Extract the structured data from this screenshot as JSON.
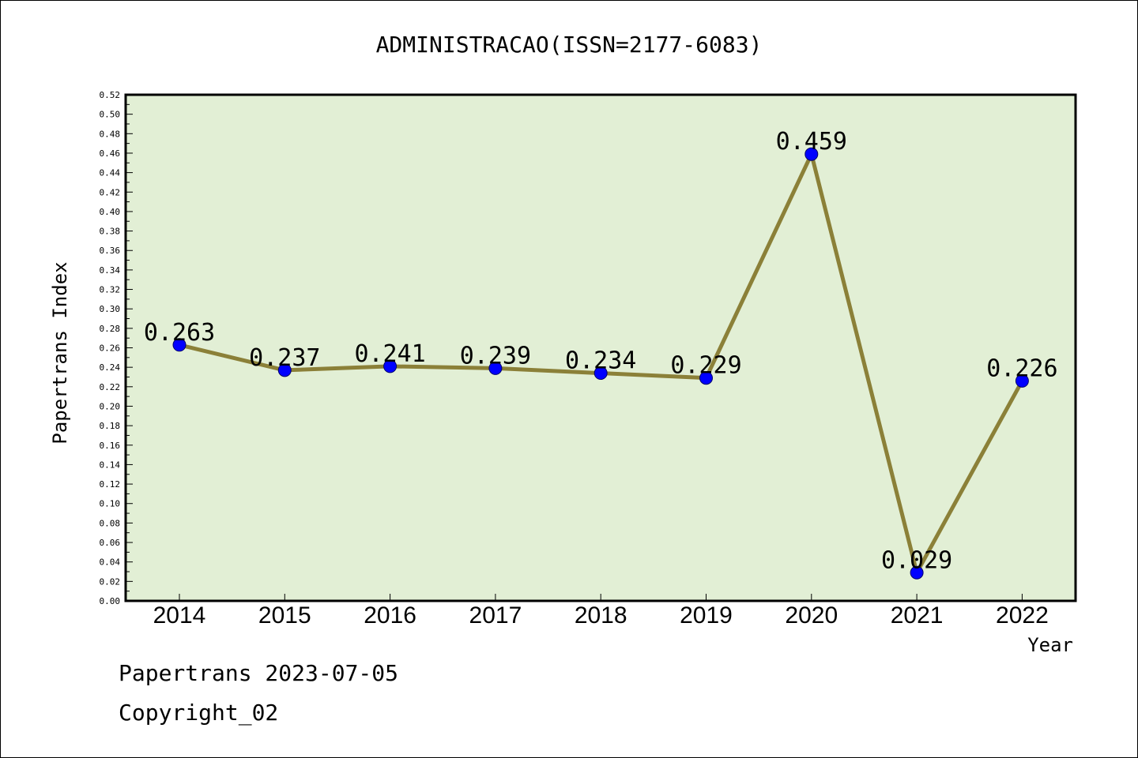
{
  "chart_data": {
    "type": "line",
    "title": "ADMINISTRACAO(ISSN=2177-6083)",
    "xlabel": "Year",
    "ylabel": "Papertrans Index",
    "categories": [
      "2014",
      "2015",
      "2016",
      "2017",
      "2018",
      "2019",
      "2020",
      "2021",
      "2022"
    ],
    "series": [
      {
        "values": [
          0.263,
          0.237,
          0.241,
          0.239,
          0.234,
          0.229,
          0.459,
          0.029,
          0.226
        ],
        "labels": [
          "0.263",
          "0.237",
          "0.241",
          "0.239",
          "0.234",
          "0.229",
          "0.459",
          "0.029",
          "0.226"
        ]
      }
    ],
    "ylim": [
      0,
      0.52
    ],
    "ytick_step": 0.02,
    "grid": false,
    "legend": "none",
    "colors": {
      "plot_background": "#e2efd5",
      "line": "#8b8038",
      "marker": "#0000ff"
    }
  },
  "footer": {
    "line1": "Papertrans 2023-07-05",
    "line2": "Copyright_02"
  }
}
